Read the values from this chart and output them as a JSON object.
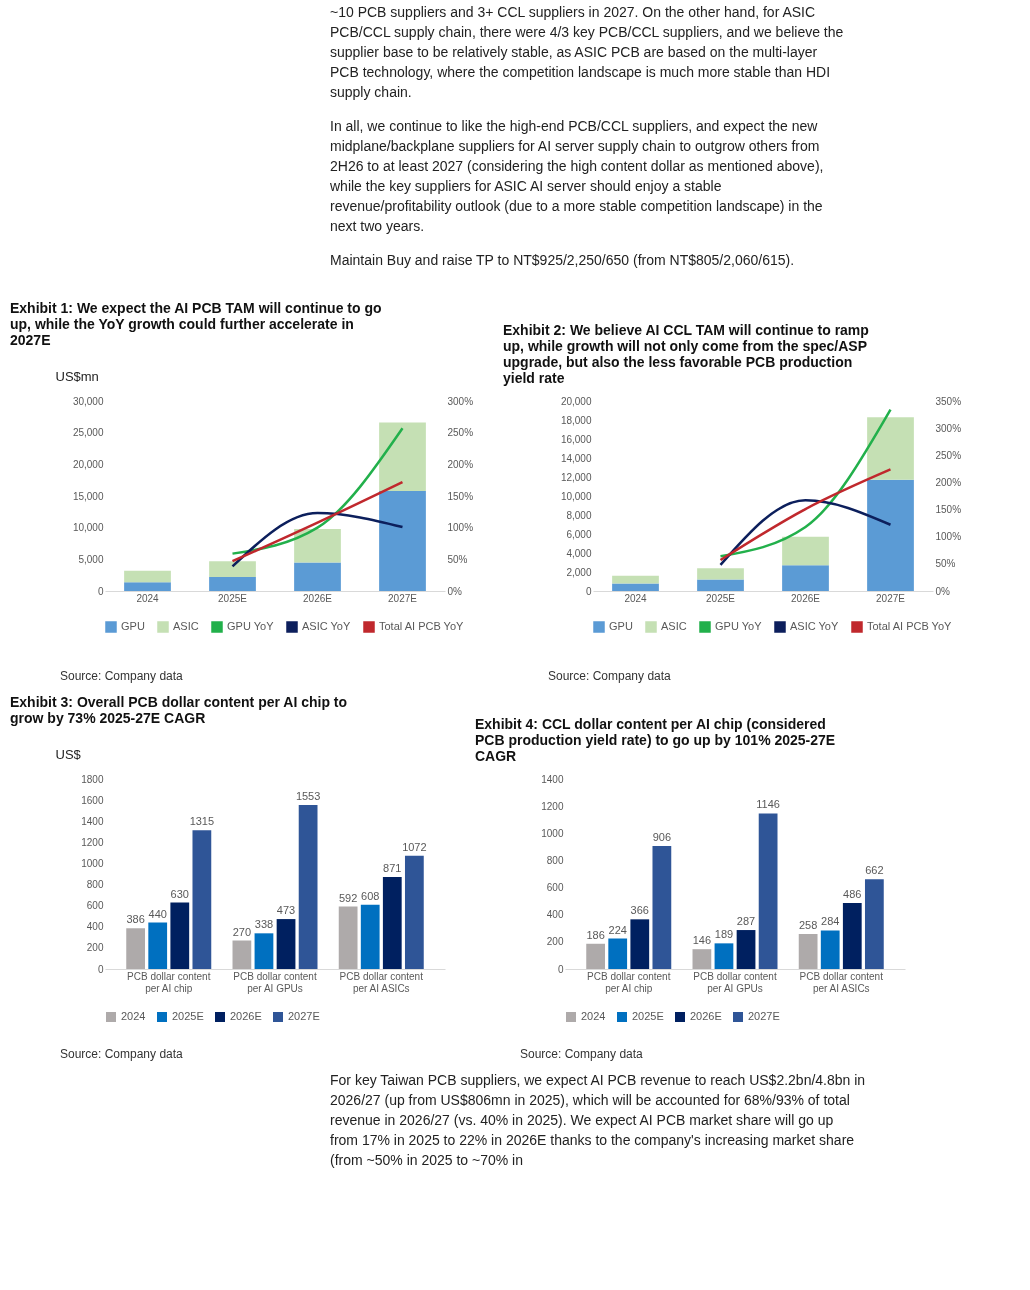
{
  "chart_data": [
    {
      "type": "other",
      "annotations": [
        "~10 PCB suppliers and 3+ CCL suppliers in 2027. On the other hand, for ASIC PCB/CCL supply chain, there were 4/3 key PCB/CCL suppliers, and we believe the supplier base to be relatively stable, as ASIC PCB are based on the multi-layer PCB technology, where the competition landscape is much more stable than HDI supply chain.",
        "In all, we continue to like the high-end PCB/CCL suppliers, and expect the new midplane/backplane suppliers for AI server supply chain to outgrow others from 2H26 to at least 2027 (considering the high content dollar as mentioned above), while the key suppliers for ASIC AI server should enjoy a stable revenue/profitability outlook (due to a more stable competition landscape) in the next two years.",
        "Maintain Buy and raise TP to NT$925/2,250/650 (from NT$805/2,060/615)."
      ]
    },
    {
      "type": "bar",
      "stacked": true,
      "title": "Exhibit 1: We expect the AI PCB TAM will continue to go up, while the YoY growth could further accelerate in 2027E",
      "ylabel": "US$mn",
      "categories": [
        "2024",
        "2025E",
        "2026E",
        "2027E"
      ],
      "series": [
        {
          "name": "GPU",
          "color": "#5b9bd5",
          "values": [
            1400,
            2200,
            4500,
            15800
          ]
        },
        {
          "name": "ASIC",
          "color": "#c5e0b4",
          "values": [
            1800,
            2500,
            5300,
            10800
          ]
        },
        {
          "name": "GPU YoY",
          "type": "line",
          "axis": "y2",
          "color": "#22b04b",
          "values": [
            null,
            59,
            100,
            257
          ]
        },
        {
          "name": "ASIC YoY",
          "type": "line",
          "axis": "y2",
          "color": "#0c1f5c",
          "values": [
            null,
            39,
            123,
            101
          ]
        },
        {
          "name": "Total AI PCB YoY",
          "type": "line",
          "axis": "y2",
          "color": "#c0282d",
          "values": [
            null,
            47,
            108,
            172
          ]
        }
      ],
      "ylim": [
        0,
        30000
      ],
      "yticks": [
        {
          "value": 0,
          "label": "0"
        },
        {
          "value": 5000,
          "label": "5,000"
        },
        {
          "value": 10000,
          "label": "10,000"
        },
        {
          "value": 15000,
          "label": "15,000"
        },
        {
          "value": 20000,
          "label": "20,000"
        },
        {
          "value": 25000,
          "label": "25,000"
        },
        {
          "value": 30000,
          "label": "30,000"
        }
      ],
      "y2lim": [
        0,
        300
      ],
      "y2ticks": [
        {
          "value": 0,
          "label": "0%"
        },
        {
          "value": 50,
          "label": "50%"
        },
        {
          "value": 100,
          "label": "100%"
        },
        {
          "value": 150,
          "label": "150%"
        },
        {
          "value": 200,
          "label": "200%"
        },
        {
          "value": 250,
          "label": "250%"
        },
        {
          "value": 300,
          "label": "300%"
        }
      ],
      "legend": "bottom",
      "annotations": [
        "Source: Company data"
      ]
    },
    {
      "type": "bar",
      "stacked": true,
      "title": "Exhibit 2: We believe AI CCL TAM will continue to ramp up, while growth will not only come from the spec/ASP upgrade, but also the less favorable PCB production yield rate",
      "categories": [
        "2024",
        "2025E",
        "2026E",
        "2027E"
      ],
      "series": [
        {
          "name": "GPU",
          "color": "#5b9bd5",
          "values": [
            800,
            1200,
            2700,
            11700
          ]
        },
        {
          "name": "ASIC",
          "color": "#c5e0b4",
          "values": [
            800,
            1200,
            3000,
            6600
          ]
        },
        {
          "name": "GPU YoY",
          "type": "line",
          "axis": "y2",
          "color": "#22b04b",
          "values": [
            null,
            64,
            118,
            334
          ]
        },
        {
          "name": "ASIC YoY",
          "type": "line",
          "axis": "y2",
          "color": "#0c1f5c",
          "values": [
            null,
            48,
            167,
            122
          ]
        },
        {
          "name": "Total AI PCB YoY",
          "type": "line",
          "axis": "y2",
          "color": "#c0282d",
          "values": [
            null,
            57,
            151,
            224
          ]
        }
      ],
      "ylim": [
        0,
        20000
      ],
      "yticks": [
        {
          "value": 0,
          "label": "0"
        },
        {
          "value": 2000,
          "label": "2,000"
        },
        {
          "value": 4000,
          "label": "4,000"
        },
        {
          "value": 6000,
          "label": "6,000"
        },
        {
          "value": 8000,
          "label": "8,000"
        },
        {
          "value": 10000,
          "label": "10,000"
        },
        {
          "value": 12000,
          "label": "12,000"
        },
        {
          "value": 14000,
          "label": "14,000"
        },
        {
          "value": 16000,
          "label": "16,000"
        },
        {
          "value": 18000,
          "label": "18,000"
        },
        {
          "value": 20000,
          "label": "20,000"
        }
      ],
      "y2lim": [
        0,
        350
      ],
      "y2ticks": [
        {
          "value": 0,
          "label": "0%"
        },
        {
          "value": 50,
          "label": "50%"
        },
        {
          "value": 100,
          "label": "100%"
        },
        {
          "value": 150,
          "label": "150%"
        },
        {
          "value": 200,
          "label": "200%"
        },
        {
          "value": 250,
          "label": "250%"
        },
        {
          "value": 300,
          "label": "300%"
        },
        {
          "value": 350,
          "label": "350%"
        }
      ],
      "legend": "bottom",
      "annotations": [
        "Source: Company data"
      ]
    },
    {
      "type": "bar",
      "title": "Exhibit 3: Overall PCB dollar content per AI chip to grow by 73% 2025-27E CAGR",
      "ylabel": "US$",
      "categories": [
        "PCB dollar content per AI chip",
        "PCB dollar content per AI GPUs",
        "PCB dollar content per AI ASICs"
      ],
      "series": [
        {
          "name": "2024",
          "color": "#aeaaaa",
          "values": [
            386,
            270,
            592
          ]
        },
        {
          "name": "2025E",
          "color": "#0070c0",
          "values": [
            440,
            338,
            608
          ]
        },
        {
          "name": "2026E",
          "color": "#002060",
          "values": [
            630,
            473,
            871
          ]
        },
        {
          "name": "2027E",
          "color": "#2f5597",
          "values": [
            1315,
            1553,
            1072
          ]
        }
      ],
      "ylim": [
        0,
        1800
      ],
      "yticks": [
        0,
        200,
        400,
        600,
        800,
        1000,
        1200,
        1400,
        1600,
        1800
      ],
      "data_labels": true,
      "legend": "bottom",
      "annotations": [
        "Source: Company data"
      ]
    },
    {
      "type": "bar",
      "title": "Exhibit 4: CCL dollar content per AI chip (considered PCB production yield rate) to go up by 101% 2025-27E CAGR",
      "categories": [
        "PCB dollar content per AI chip",
        "PCB dollar content per AI GPUs",
        "PCB dollar content per AI ASICs"
      ],
      "series": [
        {
          "name": "2024",
          "color": "#aeaaaa",
          "values": [
            186,
            146,
            258
          ]
        },
        {
          "name": "2025E",
          "color": "#0070c0",
          "values": [
            224,
            189,
            284
          ]
        },
        {
          "name": "2026E",
          "color": "#002060",
          "values": [
            366,
            287,
            486
          ]
        },
        {
          "name": "2027E",
          "color": "#2f5597",
          "values": [
            906,
            1146,
            662
          ]
        }
      ],
      "ylim": [
        0,
        1400
      ],
      "yticks": [
        0,
        200,
        400,
        600,
        800,
        1000,
        1200,
        1400
      ],
      "data_labels": true,
      "legend": "bottom",
      "annotations": [
        "Source: Company data"
      ]
    },
    {
      "type": "other",
      "annotations": [
        "For key Taiwan PCB suppliers, we expect AI PCB revenue to reach US$2.2bn/4.8bn in 2026/27 (up from US$806mn in 2025), which will be accounted for 68%/93% of total revenue in 2026/27 (vs. 40% in 2025). We expect AI PCB market share will go up from 17% in 2025 to 22% in 2026E thanks to the company's increasing market share (from ~50% in 2025 to ~70% in"
      ]
    }
  ]
}
